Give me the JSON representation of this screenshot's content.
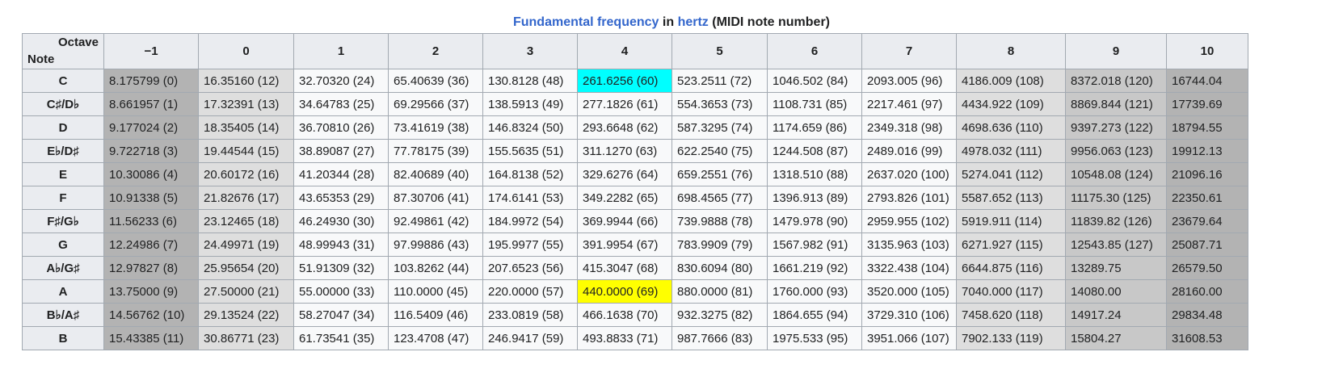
{
  "caption": {
    "part1": "Fundamental frequency",
    "part2": " in ",
    "part3": "hertz",
    "part4": " (MIDI note number)"
  },
  "corner": {
    "top": "Octave",
    "bottom": "Note"
  },
  "octaves": [
    "−1",
    "0",
    "1",
    "2",
    "3",
    "4",
    "5",
    "6",
    "7",
    "8",
    "9",
    "10"
  ],
  "rows": [
    {
      "note": "C",
      "cells": [
        "8.175799 (0)",
        "16.35160 (12)",
        "32.70320 (24)",
        "65.40639 (36)",
        "130.8128 (48)",
        "261.6256 (60)",
        "523.2511 (72)",
        "1046.502 (84)",
        "2093.005 (96)",
        "4186.009 (108)",
        "8372.018 (120)",
        "16744.04"
      ]
    },
    {
      "note": "C♯/D♭",
      "cells": [
        "8.661957 (1)",
        "17.32391 (13)",
        "34.64783 (25)",
        "69.29566 (37)",
        "138.5913 (49)",
        "277.1826 (61)",
        "554.3653 (73)",
        "1108.731 (85)",
        "2217.461 (97)",
        "4434.922 (109)",
        "8869.844 (121)",
        "17739.69"
      ]
    },
    {
      "note": "D",
      "cells": [
        "9.177024 (2)",
        "18.35405 (14)",
        "36.70810 (26)",
        "73.41619 (38)",
        "146.8324 (50)",
        "293.6648 (62)",
        "587.3295 (74)",
        "1174.659 (86)",
        "2349.318 (98)",
        "4698.636 (110)",
        "9397.273 (122)",
        "18794.55"
      ]
    },
    {
      "note": "E♭/D♯",
      "cells": [
        "9.722718 (3)",
        "19.44544 (15)",
        "38.89087 (27)",
        "77.78175 (39)",
        "155.5635 (51)",
        "311.1270 (63)",
        "622.2540 (75)",
        "1244.508 (87)",
        "2489.016 (99)",
        "4978.032 (111)",
        "9956.063 (123)",
        "19912.13"
      ]
    },
    {
      "note": "E",
      "cells": [
        "10.30086 (4)",
        "20.60172 (16)",
        "41.20344 (28)",
        "82.40689 (40)",
        "164.8138 (52)",
        "329.6276 (64)",
        "659.2551 (76)",
        "1318.510 (88)",
        "2637.020 (100)",
        "5274.041 (112)",
        "10548.08 (124)",
        "21096.16"
      ]
    },
    {
      "note": "F",
      "cells": [
        "10.91338 (5)",
        "21.82676 (17)",
        "43.65353 (29)",
        "87.30706 (41)",
        "174.6141 (53)",
        "349.2282 (65)",
        "698.4565 (77)",
        "1396.913 (89)",
        "2793.826 (101)",
        "5587.652 (113)",
        "11175.30 (125)",
        "22350.61"
      ]
    },
    {
      "note": "F♯/G♭",
      "cells": [
        "11.56233 (6)",
        "23.12465 (18)",
        "46.24930 (30)",
        "92.49861 (42)",
        "184.9972 (54)",
        "369.9944 (66)",
        "739.9888 (78)",
        "1479.978 (90)",
        "2959.955 (102)",
        "5919.911 (114)",
        "11839.82 (126)",
        "23679.64"
      ]
    },
    {
      "note": "G",
      "cells": [
        "12.24986 (7)",
        "24.49971 (19)",
        "48.99943 (31)",
        "97.99886 (43)",
        "195.9977 (55)",
        "391.9954 (67)",
        "783.9909 (79)",
        "1567.982 (91)",
        "3135.963 (103)",
        "6271.927 (115)",
        "12543.85 (127)",
        "25087.71"
      ]
    },
    {
      "note": "A♭/G♯",
      "cells": [
        "12.97827 (8)",
        "25.95654 (20)",
        "51.91309 (32)",
        "103.8262 (44)",
        "207.6523 (56)",
        "415.3047 (68)",
        "830.6094 (80)",
        "1661.219 (92)",
        "3322.438 (104)",
        "6644.875 (116)",
        "13289.75",
        "26579.50"
      ]
    },
    {
      "note": "A",
      "cells": [
        "13.75000 (9)",
        "27.50000 (21)",
        "55.00000 (33)",
        "110.0000 (45)",
        "220.0000 (57)",
        "440.0000 (69)",
        "880.0000 (81)",
        "1760.000 (93)",
        "3520.000 (105)",
        "7040.000 (117)",
        "14080.00",
        "28160.00"
      ]
    },
    {
      "note": "B♭/A♯",
      "cells": [
        "14.56762 (10)",
        "29.13524 (22)",
        "58.27047 (34)",
        "116.5409 (46)",
        "233.0819 (58)",
        "466.1638 (70)",
        "932.3275 (82)",
        "1864.655 (94)",
        "3729.310 (106)",
        "7458.620 (118)",
        "14917.24",
        "29834.48"
      ]
    },
    {
      "note": "B",
      "cells": [
        "15.43385 (11)",
        "30.86771 (23)",
        "61.73541 (35)",
        "123.4708 (47)",
        "246.9417 (59)",
        "493.8833 (71)",
        "987.7666 (83)",
        "1975.533 (95)",
        "3951.066 (107)",
        "7902.133 (119)",
        "15804.27",
        "31608.53"
      ]
    }
  ],
  "column_shading": [
    "dark",
    "light",
    "",
    "",
    "",
    "",
    "",
    "",
    "",
    "light",
    "mid",
    "dark"
  ],
  "highlights": [
    {
      "row": 0,
      "col": 5,
      "color": "#00ffff"
    },
    {
      "row": 9,
      "col": 5,
      "color": "#ffff00"
    }
  ],
  "colors": {
    "link": "#3366cc",
    "header_bg": "#eaecf0",
    "cell_bg": "#f8f9fa",
    "border": "#a2a9b1",
    "light_shade": "#dedede",
    "mid_shade": "#c8c8c8",
    "dark_shade": "#b3b3b3",
    "middle_c_highlight": "#00ffff",
    "a440_highlight": "#ffff00"
  }
}
